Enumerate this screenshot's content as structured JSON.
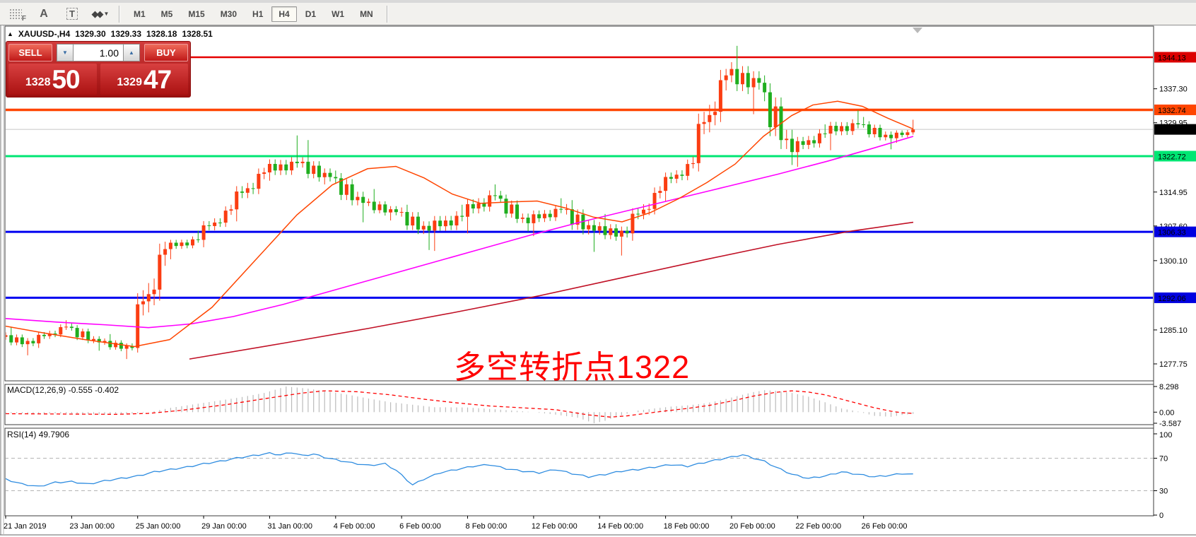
{
  "window": {
    "title_marker": "▲",
    "symbol_tf": "XAUUSD-,H4",
    "ohlc": {
      "open": "1329.30",
      "high": "1329.33",
      "low": "1328.18",
      "close": "1328.51"
    }
  },
  "toolbar": {
    "icons": [
      {
        "name": "chart-properties-icon",
        "glyph": "F"
      },
      {
        "name": "text-label-icon",
        "glyph": "A"
      },
      {
        "name": "text-box-icon",
        "glyph": "T"
      },
      {
        "name": "arrows-tool-icon",
        "glyph": "◆◆"
      }
    ],
    "caret": "▼",
    "timeframes": [
      {
        "label": "M1",
        "active": false
      },
      {
        "label": "M5",
        "active": false
      },
      {
        "label": "M15",
        "active": false
      },
      {
        "label": "M30",
        "active": false
      },
      {
        "label": "H1",
        "active": false
      },
      {
        "label": "H4",
        "active": true
      },
      {
        "label": "D1",
        "active": false
      },
      {
        "label": "W1",
        "active": false
      },
      {
        "label": "MN",
        "active": false
      }
    ]
  },
  "one_click": {
    "sell_label": "SELL",
    "buy_label": "BUY",
    "volume": "1.00",
    "spin_up": "▲",
    "spin_down": "▼",
    "bid_small": "1328",
    "bid_big": "50",
    "ask_small": "1329",
    "ask_big": "47"
  },
  "panels": {
    "macd_label": "MACD(12,26,9)",
    "macd_values": "-0.555 -0.402",
    "rsi_label": "RSI(14)",
    "rsi_value": "49.7906"
  },
  "annotation": {
    "text": "多空转折点1322",
    "color": "#FF0000"
  },
  "colors": {
    "bull": "#FB3D12",
    "bear": "#1FAE1F",
    "ma_orange": "#FF4500",
    "ma_magenta": "#FF00FF",
    "ma_darkred": "#C01025",
    "macd_hist": "#BBBBBB",
    "macd_signal": "#FF0000",
    "rsi": "#2E8CE0",
    "bid_line": "#C8C8C8",
    "axis_border": "#3c3c3c",
    "dashed_level": "#b4b4b4"
  },
  "chart_data": {
    "type": "candlestick",
    "symbol": "XAUUSD",
    "timeframe": "H4",
    "days": [
      {
        "d": "21 Jan",
        "o": 1283.6,
        "h": 1285.8,
        "l": 1279.6,
        "c": 1282.2
      },
      {
        "d": "22 Jan",
        "o": 1282.2,
        "h": 1287.2,
        "l": 1281.2,
        "c": 1285.8
      },
      {
        "d": "23 Jan",
        "o": 1285.8,
        "h": 1286.6,
        "l": 1280.6,
        "c": 1282.4
      },
      {
        "d": "24 Jan",
        "o": 1282.4,
        "h": 1284.2,
        "l": 1278.8,
        "c": 1281.2
      },
      {
        "d": "25 Jan",
        "o": 1281.2,
        "h": 1304.2,
        "l": 1280.2,
        "c": 1302.6
      },
      {
        "d": "28 Jan",
        "o": 1302.6,
        "h": 1306.6,
        "l": 1300.4,
        "c": 1304.6
      },
      {
        "d": "29 Jan",
        "o": 1304.6,
        "h": 1312.2,
        "l": 1303.0,
        "c": 1311.2
      },
      {
        "d": "30 Jan",
        "o": 1311.2,
        "h": 1320.2,
        "l": 1308.6,
        "c": 1319.2
      },
      {
        "d": "31 Jan",
        "o": 1319.2,
        "h": 1327.2,
        "l": 1317.4,
        "c": 1321.2
      },
      {
        "d": "1 Feb",
        "o": 1321.2,
        "h": 1326.2,
        "l": 1316.6,
        "c": 1318.2
      },
      {
        "d": "4 Feb",
        "o": 1318.2,
        "h": 1319.6,
        "l": 1308.4,
        "c": 1312.6
      },
      {
        "d": "5 Feb",
        "o": 1312.6,
        "h": 1315.6,
        "l": 1308.8,
        "c": 1310.6
      },
      {
        "d": "6 Feb",
        "o": 1310.6,
        "h": 1312.2,
        "l": 1302.4,
        "c": 1306.6
      },
      {
        "d": "7 Feb",
        "o": 1306.6,
        "h": 1312.2,
        "l": 1302.2,
        "c": 1309.6
      },
      {
        "d": "8 Feb",
        "o": 1309.6,
        "h": 1316.6,
        "l": 1306.0,
        "c": 1314.2
      },
      {
        "d": "11 Feb",
        "o": 1314.2,
        "h": 1315.2,
        "l": 1306.4,
        "c": 1308.2
      },
      {
        "d": "12 Feb",
        "o": 1308.2,
        "h": 1313.6,
        "l": 1305.4,
        "c": 1311.2
      },
      {
        "d": "13 Feb",
        "o": 1311.2,
        "h": 1313.2,
        "l": 1302.0,
        "c": 1306.6
      },
      {
        "d": "14 Feb",
        "o": 1306.6,
        "h": 1310.2,
        "l": 1301.2,
        "c": 1306.0
      },
      {
        "d": "15 Feb",
        "o": 1306.0,
        "h": 1316.2,
        "l": 1304.4,
        "c": 1315.2
      },
      {
        "d": "18 Feb",
        "o": 1315.2,
        "h": 1322.6,
        "l": 1313.0,
        "c": 1321.2
      },
      {
        "d": "19 Feb",
        "o": 1321.2,
        "h": 1341.6,
        "l": 1319.4,
        "c": 1340.2
      },
      {
        "d": "20 Feb",
        "o": 1340.2,
        "h": 1346.6,
        "l": 1331.8,
        "c": 1338.6
      },
      {
        "d": "21 Feb",
        "o": 1338.6,
        "h": 1340.2,
        "l": 1320.8,
        "c": 1323.6
      },
      {
        "d": "22 Feb",
        "o": 1323.6,
        "h": 1329.6,
        "l": 1320.4,
        "c": 1327.6
      },
      {
        "d": "25 Feb",
        "o": 1327.6,
        "h": 1332.6,
        "l": 1324.0,
        "c": 1329.6
      },
      {
        "d": "26 Feb",
        "o": 1329.6,
        "h": 1331.2,
        "l": 1324.2,
        "c": 1326.6
      },
      {
        "d": "27 Feb",
        "o": 1326.6,
        "h": 1330.6,
        "l": 1325.6,
        "c": 1328.5,
        "n": 4
      }
    ],
    "levels": [
      {
        "price": 1344.13,
        "label": "1344.13",
        "color": "#E60000",
        "width": 2.5,
        "badge": "#DC0000"
      },
      {
        "price": 1332.74,
        "label": "1332.74",
        "color": "#FF4500",
        "width": 3.5,
        "badge": "#FF4500"
      },
      {
        "price": 1328.51,
        "label": "1328.51",
        "color": "#C8C8C8",
        "width": 1,
        "badge": "#000000"
      },
      {
        "price": 1322.72,
        "label": "1322.72",
        "color": "#00E673",
        "width": 3,
        "badge": "#00E673"
      },
      {
        "price": 1306.33,
        "label": "1306.33",
        "color": "#0000F0",
        "width": 3,
        "badge": "#0000E0"
      },
      {
        "price": 1292.06,
        "label": "1292.06",
        "color": "#0000F0",
        "width": 3,
        "badge": "#0000E0"
      }
    ],
    "y_ticks": [
      {
        "label": "1337.30",
        "v": 1337.3
      },
      {
        "label": "1329.95",
        "v": 1329.95
      },
      {
        "label": "1314.95",
        "v": 1314.95
      },
      {
        "label": "1307.60",
        "v": 1307.6
      },
      {
        "label": "1300.10",
        "v": 1300.1
      },
      {
        "label": "1285.10",
        "v": 1285.1
      },
      {
        "label": "1277.75",
        "v": 1277.75
      }
    ],
    "x_ticks": [
      {
        "label": "21 Jan 2019",
        "i": 0
      },
      {
        "label": "23 Jan 00:00",
        "i": 12
      },
      {
        "label": "25 Jan 00:00",
        "i": 24
      },
      {
        "label": "29 Jan 00:00",
        "i": 36
      },
      {
        "label": "31 Jan 00:00",
        "i": 48
      },
      {
        "label": "4 Feb 00:00",
        "i": 60
      },
      {
        "label": "6 Feb 00:00",
        "i": 72
      },
      {
        "label": "8 Feb 00:00",
        "i": 84
      },
      {
        "label": "12 Feb 00:00",
        "i": 96
      },
      {
        "label": "14 Feb 00:00",
        "i": 108
      },
      {
        "label": "18 Feb 00:00",
        "i": 120
      },
      {
        "label": "20 Feb 00:00",
        "i": 132
      },
      {
        "label": "22 Feb 00:00",
        "i": 144
      },
      {
        "label": "26 Feb 00:00",
        "i": 156
      }
    ],
    "ma_orange": [
      [
        5,
        1286
      ],
      [
        60,
        1284.5
      ],
      [
        120,
        1283
      ],
      [
        190,
        1281.5
      ],
      [
        240,
        1283
      ],
      [
        300,
        1290
      ],
      [
        360,
        1300
      ],
      [
        420,
        1310
      ],
      [
        470,
        1316.5
      ],
      [
        520,
        1320
      ],
      [
        560,
        1320.5
      ],
      [
        600,
        1318
      ],
      [
        640,
        1314.5
      ],
      [
        680,
        1312.5
      ],
      [
        720,
        1312.8
      ],
      [
        760,
        1313
      ],
      [
        800,
        1311.5
      ],
      [
        840,
        1309.5
      ],
      [
        880,
        1308.5
      ],
      [
        920,
        1310.5
      ],
      [
        960,
        1313.5
      ],
      [
        1000,
        1317
      ],
      [
        1040,
        1321
      ],
      [
        1080,
        1327
      ],
      [
        1120,
        1331.5
      ],
      [
        1150,
        1333.8
      ],
      [
        1185,
        1334.6
      ],
      [
        1220,
        1333.5
      ],
      [
        1255,
        1331
      ],
      [
        1292,
        1328.6
      ]
    ],
    "ma_magenta": [
      [
        5,
        1287.6
      ],
      [
        80,
        1286.8
      ],
      [
        150,
        1286.2
      ],
      [
        210,
        1285.6
      ],
      [
        270,
        1286.4
      ],
      [
        330,
        1288
      ],
      [
        400,
        1290.6
      ],
      [
        470,
        1293.6
      ],
      [
        540,
        1296.6
      ],
      [
        610,
        1299.6
      ],
      [
        680,
        1302.6
      ],
      [
        750,
        1305.6
      ],
      [
        820,
        1308.4
      ],
      [
        890,
        1311
      ],
      [
        960,
        1313.6
      ],
      [
        1030,
        1316.2
      ],
      [
        1100,
        1318.8
      ],
      [
        1170,
        1321.6
      ],
      [
        1230,
        1324.2
      ],
      [
        1292,
        1327
      ]
    ],
    "ma_darkred": [
      [
        268,
        1278.8
      ],
      [
        400,
        1282.2
      ],
      [
        520,
        1285.4
      ],
      [
        640,
        1288.8
      ],
      [
        760,
        1292.4
      ],
      [
        880,
        1296.4
      ],
      [
        1000,
        1300.4
      ],
      [
        1100,
        1303.6
      ],
      [
        1200,
        1306.4
      ],
      [
        1292,
        1308.4
      ]
    ],
    "macd": {
      "label": "MACD(12,26,9)",
      "current_hist": -0.555,
      "current_signal": -0.402,
      "axis": [
        {
          "label": "8.298",
          "v": 8.298
        },
        {
          "label": "0.00",
          "v": 0
        },
        {
          "label": "-3.587",
          "v": -3.587
        }
      ],
      "hist": [
        [
          0,
          -0.3
        ],
        [
          6,
          -0.5
        ],
        [
          12,
          -0.4
        ],
        [
          18,
          -0.8
        ],
        [
          24,
          -0.4
        ],
        [
          27,
          0.3
        ],
        [
          30,
          1.4
        ],
        [
          36,
          3.0
        ],
        [
          42,
          4.6
        ],
        [
          47,
          6.2
        ],
        [
          51,
          8.298
        ],
        [
          55,
          7.6
        ],
        [
          59,
          6.6
        ],
        [
          63,
          5.4
        ],
        [
          66,
          4.4
        ],
        [
          70,
          3.2
        ],
        [
          74,
          2.4
        ],
        [
          78,
          1.6
        ],
        [
          84,
          1.5
        ],
        [
          90,
          0.8
        ],
        [
          96,
          0.0
        ],
        [
          100,
          -0.8
        ],
        [
          104,
          -1.8
        ],
        [
          107,
          -3.587
        ],
        [
          109,
          -2.8
        ],
        [
          111,
          -1.5
        ],
        [
          113,
          -0.5
        ],
        [
          115,
          0.5
        ],
        [
          118,
          1.2
        ],
        [
          121,
          1.8
        ],
        [
          124,
          2.2
        ],
        [
          127,
          2.8
        ],
        [
          130,
          3.8
        ],
        [
          133,
          5.2
        ],
        [
          136,
          6.5
        ],
        [
          138,
          7.1
        ],
        [
          140,
          6.9
        ],
        [
          143,
          6.2
        ],
        [
          146,
          5.0
        ],
        [
          149,
          3.2
        ],
        [
          152,
          1.2
        ],
        [
          155,
          0.2
        ],
        [
          158,
          -1.2
        ],
        [
          161,
          -1.5
        ],
        [
          163,
          -0.9
        ],
        [
          165,
          -0.555
        ]
      ],
      "signal": [
        [
          0,
          -0.5
        ],
        [
          10,
          -0.6
        ],
        [
          20,
          -0.7
        ],
        [
          26,
          -0.4
        ],
        [
          32,
          0.6
        ],
        [
          40,
          2.4
        ],
        [
          48,
          4.6
        ],
        [
          54,
          6.2
        ],
        [
          58,
          6.9
        ],
        [
          64,
          6.6
        ],
        [
          70,
          5.6
        ],
        [
          76,
          4.2
        ],
        [
          82,
          3.0
        ],
        [
          88,
          2.0
        ],
        [
          94,
          1.4
        ],
        [
          100,
          0.8
        ],
        [
          106,
          -0.9
        ],
        [
          110,
          -1.6
        ],
        [
          113,
          -1.2
        ],
        [
          116,
          -0.5
        ],
        [
          120,
          0.4
        ],
        [
          124,
          1.2
        ],
        [
          128,
          2.2
        ],
        [
          132,
          3.6
        ],
        [
          136,
          5.2
        ],
        [
          140,
          6.4
        ],
        [
          143,
          6.9
        ],
        [
          146,
          6.5
        ],
        [
          149,
          5.6
        ],
        [
          152,
          4.2
        ],
        [
          155,
          2.8
        ],
        [
          158,
          1.4
        ],
        [
          161,
          0.3
        ],
        [
          163,
          -0.2
        ],
        [
          165,
          -0.402
        ]
      ]
    },
    "rsi": {
      "label": "RSI(14)",
      "current": 49.7906,
      "axis": [
        {
          "label": "100",
          "v": 100
        },
        {
          "label": "70",
          "v": 70
        },
        {
          "label": "30",
          "v": 30
        },
        {
          "label": "0",
          "v": 0
        }
      ],
      "dashed_levels": [
        70,
        30
      ],
      "points": [
        [
          0,
          44
        ],
        [
          3,
          38
        ],
        [
          6,
          35
        ],
        [
          9,
          40
        ],
        [
          12,
          41
        ],
        [
          15,
          38
        ],
        [
          18,
          42
        ],
        [
          21,
          45
        ],
        [
          24,
          48
        ],
        [
          27,
          53
        ],
        [
          30,
          56
        ],
        [
          33,
          59
        ],
        [
          36,
          63
        ],
        [
          39,
          66
        ],
        [
          42,
          70
        ],
        [
          45,
          73
        ],
        [
          48,
          76
        ],
        [
          50,
          74
        ],
        [
          52,
          77
        ],
        [
          54,
          73
        ],
        [
          56,
          75
        ],
        [
          58,
          71
        ],
        [
          60,
          68
        ],
        [
          63,
          64
        ],
        [
          66,
          61
        ],
        [
          69,
          63
        ],
        [
          71,
          55
        ],
        [
          74,
          37
        ],
        [
          76,
          44
        ],
        [
          79,
          52
        ],
        [
          82,
          56
        ],
        [
          85,
          60
        ],
        [
          88,
          62
        ],
        [
          91,
          57
        ],
        [
          94,
          54
        ],
        [
          97,
          52
        ],
        [
          100,
          56
        ],
        [
          103,
          51
        ],
        [
          106,
          47
        ],
        [
          109,
          50
        ],
        [
          112,
          54
        ],
        [
          115,
          56
        ],
        [
          118,
          59
        ],
        [
          121,
          62
        ],
        [
          124,
          60
        ],
        [
          126,
          63
        ],
        [
          128,
          66
        ],
        [
          131,
          70
        ],
        [
          134,
          74
        ],
        [
          136,
          70
        ],
        [
          138,
          66
        ],
        [
          140,
          59
        ],
        [
          143,
          50
        ],
        [
          146,
          45
        ],
        [
          149,
          48
        ],
        [
          152,
          53
        ],
        [
          155,
          50
        ],
        [
          158,
          47
        ],
        [
          161,
          49
        ],
        [
          163,
          51
        ],
        [
          165,
          49.8
        ]
      ]
    }
  }
}
